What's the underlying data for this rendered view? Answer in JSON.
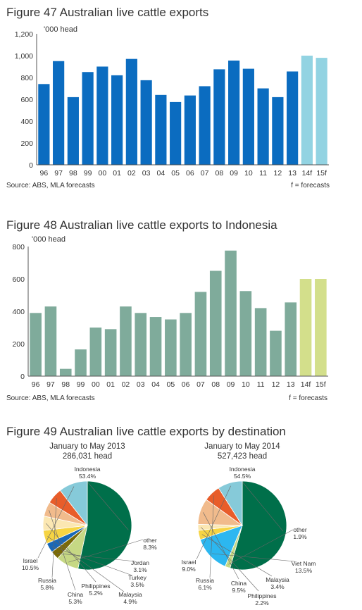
{
  "chart_data": [
    {
      "type": "bar",
      "title": "Figure 47 Australian live cattle exports",
      "ylabel": "'000 head",
      "ylim": [
        0,
        1200
      ],
      "yticks": [
        "0",
        "200",
        "400",
        "600",
        "800",
        "1,000",
        "1,200"
      ],
      "categories": [
        "96",
        "97",
        "98",
        "99",
        "00",
        "01",
        "02",
        "03",
        "04",
        "05",
        "06",
        "07",
        "08",
        "09",
        "10",
        "11",
        "12",
        "13",
        "14f",
        "15f"
      ],
      "values": [
        740,
        950,
        620,
        850,
        900,
        820,
        970,
        775,
        640,
        575,
        635,
        720,
        875,
        955,
        880,
        700,
        620,
        855,
        1000,
        980
      ],
      "forecast_from_index": 18,
      "colors": {
        "actual": "#0b6cc0",
        "forecast": "#92d3e2"
      },
      "source": "Source:  ABS, MLA forecasts",
      "note": "f = forecasts",
      "grid": false
    },
    {
      "type": "bar",
      "title": "Figure 48 Australian live cattle exports to Indonesia",
      "ylabel": "'000 head",
      "ylim": [
        0,
        800
      ],
      "yticks": [
        "0",
        "200",
        "400",
        "600",
        "800"
      ],
      "categories": [
        "96",
        "97",
        "98",
        "99",
        "00",
        "01",
        "02",
        "03",
        "04",
        "05",
        "06",
        "07",
        "08",
        "09",
        "10",
        "11",
        "12",
        "13",
        "14f",
        "15f"
      ],
      "values": [
        390,
        430,
        45,
        165,
        300,
        290,
        430,
        390,
        365,
        350,
        390,
        520,
        650,
        775,
        525,
        420,
        280,
        455,
        600,
        600
      ],
      "forecast_from_index": 18,
      "colors": {
        "actual": "#7fab9b",
        "forecast": "#d3df8b"
      },
      "source": "Source:  ABS, MLA forecasts",
      "note": "f = forecasts",
      "grid": false
    },
    {
      "type": "pie",
      "figure_title": "Figure 49 Australian live cattle exports by destination",
      "title": "January to May 2013",
      "subtitle": "286,031 head",
      "slices": [
        {
          "label": "Indonesia",
          "value": 53.4,
          "pct": "53.4%",
          "color": "#006f4a"
        },
        {
          "label": "other",
          "value": 8.3,
          "pct": "8.3%",
          "color": "#c6d884"
        },
        {
          "label": "Jordan",
          "value": 3.1,
          "pct": "3.1%",
          "color": "#7a6a06"
        },
        {
          "label": "Turkey",
          "value": 3.5,
          "pct": "3.5%",
          "color": "#1868b8"
        },
        {
          "label": "Malaysia",
          "value": 4.9,
          "pct": "4.9%",
          "color": "#f6d443"
        },
        {
          "label": "Philippines",
          "value": 5.2,
          "pct": "5.2%",
          "color": "#fbe7b2"
        },
        {
          "label": "China",
          "value": 5.3,
          "pct": "5.3%",
          "color": "#f1bb8c"
        },
        {
          "label": "Russia",
          "value": 5.8,
          "pct": "5.8%",
          "color": "#e85d2a"
        },
        {
          "label": "Israel",
          "value": 10.5,
          "pct": "10.5%",
          "color": "#86cad9"
        }
      ]
    },
    {
      "type": "pie",
      "title": "January to May 2014",
      "subtitle": "527,423 head",
      "slices": [
        {
          "label": "Indonesia",
          "value": 54.5,
          "pct": "54.5%",
          "color": "#006f4a"
        },
        {
          "label": "other",
          "value": 1.9,
          "pct": "1.9%",
          "color": "#c6d884"
        },
        {
          "label": "Viet Nam",
          "value": 13.5,
          "pct": "13.5%",
          "color": "#2cb7f0"
        },
        {
          "label": "Malaysia",
          "value": 3.4,
          "pct": "3.4%",
          "color": "#f6d443"
        },
        {
          "label": "Philippines",
          "value": 2.2,
          "pct": "2.2%",
          "color": "#fbe7b2"
        },
        {
          "label": "China",
          "value": 9.5,
          "pct": "9.5%",
          "color": "#f1bb8c"
        },
        {
          "label": "Russia",
          "value": 6.1,
          "pct": "6.1%",
          "color": "#e85d2a"
        },
        {
          "label": "Israel",
          "value": 9.0,
          "pct": "9.0%",
          "color": "#86cad9"
        }
      ]
    }
  ]
}
